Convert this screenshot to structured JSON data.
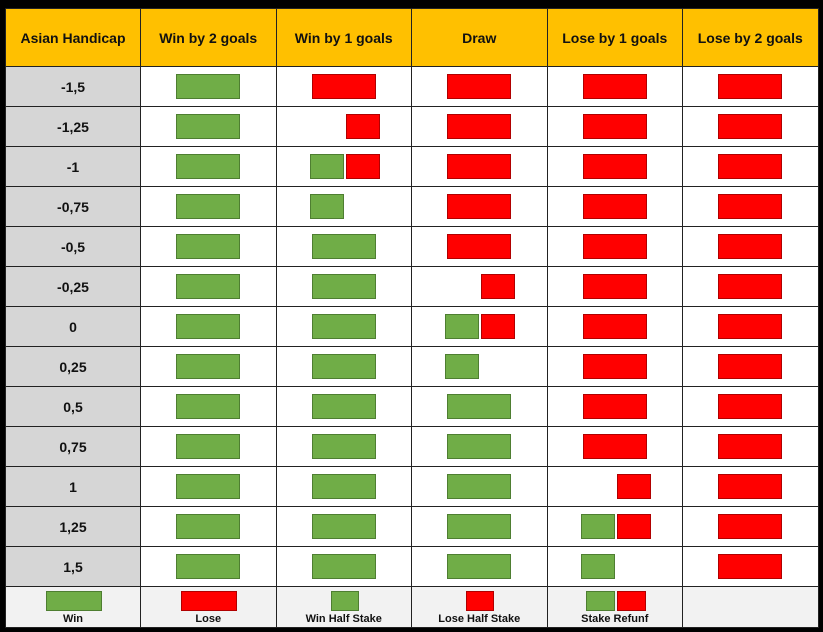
{
  "header": {
    "col0": "Asian Handicap",
    "cols": [
      "Win by 2 goals",
      "Win by 1 goals",
      "Draw",
      "Lose by 1 goals",
      "Lose by 2 goals"
    ]
  },
  "rows": [
    {
      "label": "-1,5",
      "cells": [
        "win",
        "lose",
        "lose",
        "lose",
        "lose"
      ]
    },
    {
      "label": "-1,25",
      "cells": [
        "win",
        "lose-half",
        "lose",
        "lose",
        "lose"
      ]
    },
    {
      "label": "-1",
      "cells": [
        "win",
        "refund",
        "lose",
        "lose",
        "lose"
      ]
    },
    {
      "label": "-0,75",
      "cells": [
        "win",
        "win-half",
        "lose",
        "lose",
        "lose"
      ]
    },
    {
      "label": "-0,5",
      "cells": [
        "win",
        "win",
        "lose",
        "lose",
        "lose"
      ]
    },
    {
      "label": "-0,25",
      "cells": [
        "win",
        "win",
        "lose-half",
        "lose",
        "lose"
      ]
    },
    {
      "label": "0",
      "cells": [
        "win",
        "win",
        "refund",
        "lose",
        "lose"
      ]
    },
    {
      "label": "0,25",
      "cells": [
        "win",
        "win",
        "win-half",
        "lose",
        "lose"
      ]
    },
    {
      "label": "0,5",
      "cells": [
        "win",
        "win",
        "win",
        "lose",
        "lose"
      ]
    },
    {
      "label": "0,75",
      "cells": [
        "win",
        "win",
        "win",
        "lose",
        "lose"
      ]
    },
    {
      "label": "1",
      "cells": [
        "win",
        "win",
        "win",
        "lose-half",
        "lose"
      ]
    },
    {
      "label": "1,25",
      "cells": [
        "win",
        "win",
        "win",
        "refund",
        "lose"
      ]
    },
    {
      "label": "1,5",
      "cells": [
        "win",
        "win",
        "win",
        "win-half",
        "lose"
      ]
    }
  ],
  "legend": [
    {
      "key": "win",
      "label": "Win"
    },
    {
      "key": "lose",
      "label": "Lose"
    },
    {
      "key": "win-half",
      "label": "Win Half Stake"
    },
    {
      "key": "lose-half",
      "label": "Lose Half Stake"
    },
    {
      "key": "refund",
      "label": "Stake Refunf"
    },
    {
      "key": "",
      "label": ""
    }
  ],
  "colors": {
    "header_bg": "#ffc000",
    "label_bg": "#d6d6d6",
    "win": "#70ad47",
    "lose": "#ff0000"
  }
}
